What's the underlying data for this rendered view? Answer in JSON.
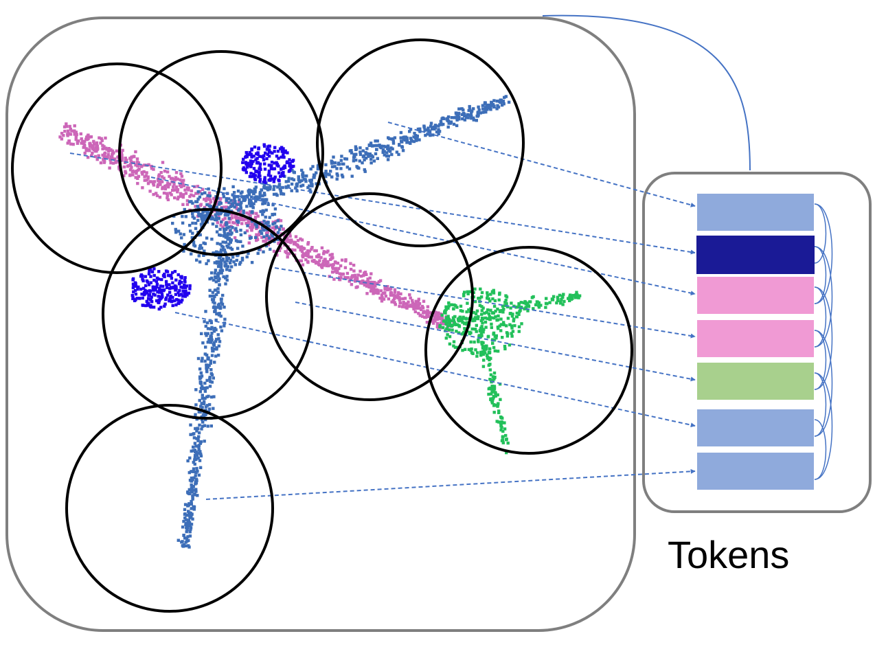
{
  "labels": {
    "tokens": "Tokens"
  },
  "colors": {
    "panel_border": "#7f7f7f",
    "circle": "#000000",
    "arrow": "#4472c4",
    "points": {
      "fuselage": "#cc66b8",
      "wing": "#3d6eb8",
      "engine": "#2200ee",
      "tail": "#22c05a"
    }
  },
  "point_cloud": {
    "object": "airplane",
    "parts": [
      "fuselage",
      "wing",
      "engine",
      "tail"
    ]
  },
  "tokens": [
    {
      "color": "#8faadc",
      "part": "wing"
    },
    {
      "color": "#1a1a96",
      "part": "engine"
    },
    {
      "color": "#f09ad4",
      "part": "fuselage"
    },
    {
      "color": "#f09ad4",
      "part": "fuselage"
    },
    {
      "color": "#a8d08d",
      "part": "tail"
    },
    {
      "color": "#8faadc",
      "part": "wing"
    },
    {
      "color": "#8faadc",
      "part": "wing"
    }
  ]
}
